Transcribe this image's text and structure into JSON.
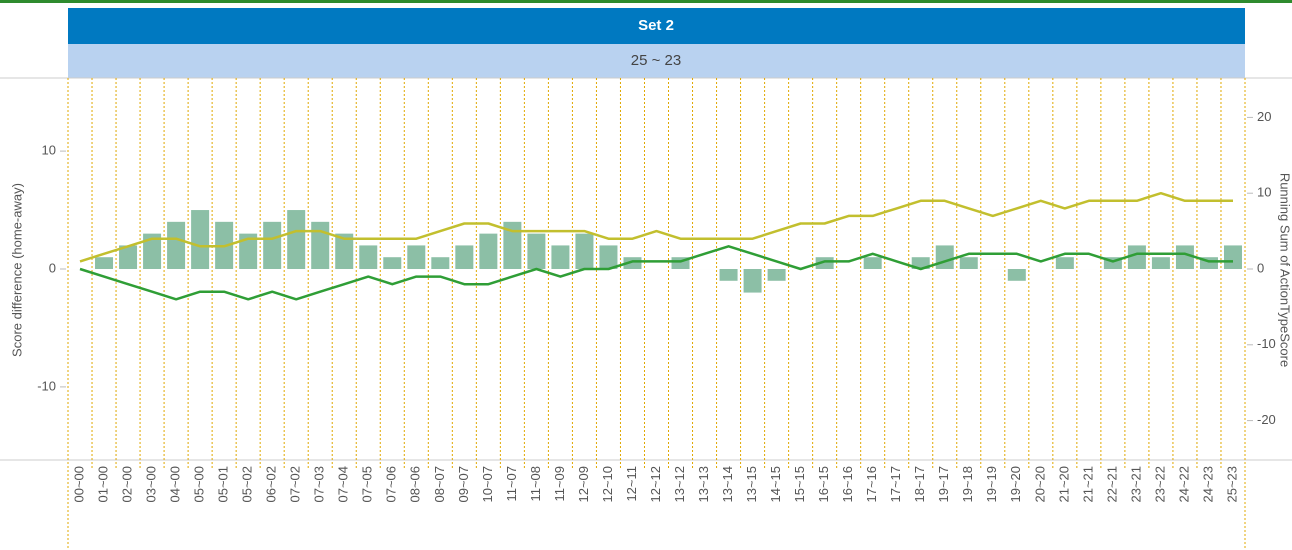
{
  "chart_data": {
    "type": "combo",
    "title": "Set 2",
    "subtitle": "25 ~ 23",
    "y_label": "Score difference (home-away)",
    "y2_label": "Running Sum of ActionTypeScore",
    "categories": [
      "00~00",
      "01~00",
      "02~00",
      "03~00",
      "04~00",
      "05~00",
      "05~01",
      "05~02",
      "06~02",
      "07~02",
      "07~03",
      "07~04",
      "07~05",
      "07~06",
      "08~06",
      "08~07",
      "09~07",
      "10~07",
      "11~07",
      "11~08",
      "11~09",
      "12~09",
      "12~10",
      "12~11",
      "12~12",
      "13~12",
      "13~13",
      "13~14",
      "13~15",
      "14~15",
      "15~15",
      "16~15",
      "16~16",
      "17~16",
      "17~17",
      "18~17",
      "19~17",
      "19~18",
      "19~19",
      "19~20",
      "20~20",
      "21~20",
      "21~21",
      "22~21",
      "23~21",
      "23~22",
      "24~22",
      "24~23",
      "25~23"
    ],
    "series": [
      {
        "type": "bar",
        "axis": "y",
        "color": "#8cbfa6",
        "values": [
          0,
          1,
          2,
          3,
          4,
          5,
          4,
          3,
          4,
          5,
          4,
          3,
          2,
          1,
          2,
          1,
          2,
          3,
          4,
          3,
          2,
          3,
          2,
          1,
          0,
          1,
          0,
          -1,
          -2,
          -1,
          0,
          1,
          0,
          1,
          0,
          1,
          2,
          1,
          0,
          -1,
          0,
          1,
          0,
          1,
          2,
          1,
          2,
          1,
          2
        ]
      },
      {
        "type": "line",
        "axis": "y2",
        "color": "#c2bf2e",
        "values": [
          1,
          2,
          3,
          4,
          4,
          3,
          3,
          4,
          4,
          5,
          5,
          4,
          4,
          4,
          4,
          5,
          6,
          6,
          5,
          5,
          5,
          5,
          4,
          4,
          5,
          4,
          4,
          4,
          4,
          5,
          6,
          6,
          7,
          7,
          8,
          9,
          9,
          8,
          7,
          8,
          9,
          8,
          9,
          9,
          9,
          10,
          9,
          9,
          9
        ]
      },
      {
        "type": "line",
        "axis": "y2",
        "color": "#2f9e36",
        "values": [
          0,
          -1,
          -2,
          -3,
          -4,
          -3,
          -3,
          -4,
          -3,
          -4,
          -3,
          -2,
          -1,
          -2,
          -1,
          -1,
          -2,
          -2,
          -1,
          0,
          -1,
          0,
          0,
          1,
          1,
          1,
          2,
          3,
          2,
          1,
          0,
          1,
          1,
          2,
          1,
          0,
          1,
          2,
          2,
          2,
          1,
          2,
          2,
          1,
          2,
          2,
          2,
          1,
          1
        ]
      }
    ],
    "ylim": [
      -16.2,
      16.2
    ],
    "yticks": [
      -10,
      0,
      10
    ],
    "y2lim": [
      -25.2,
      25.2
    ],
    "y2ticks": [
      -20,
      -10,
      0,
      10,
      20
    ]
  }
}
